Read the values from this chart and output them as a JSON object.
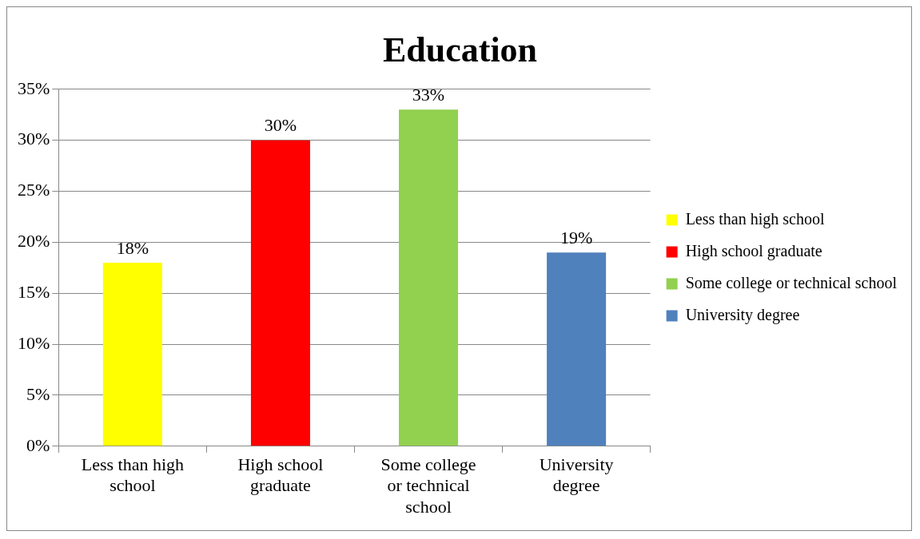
{
  "chart_data": {
    "type": "bar",
    "title": "Education",
    "categories": [
      "Less than high school",
      "High school graduate",
      "Some college or technical school",
      "University degree"
    ],
    "series": [
      {
        "name": "Less than high school",
        "color": "#ffff00",
        "values": [
          18,
          null,
          null,
          null
        ],
        "value_labels": [
          "18%",
          null,
          null,
          null
        ]
      },
      {
        "name": "High school graduate",
        "color": "#ff0000",
        "values": [
          null,
          30,
          null,
          null
        ],
        "value_labels": [
          null,
          "30%",
          null,
          null
        ]
      },
      {
        "name": "Some college or technical school",
        "color": "#92d050",
        "values": [
          null,
          null,
          33,
          null
        ],
        "value_labels": [
          null,
          null,
          "33%",
          null
        ]
      },
      {
        "name": "University degree",
        "color": "#4f81bd",
        "values": [
          null,
          null,
          null,
          19
        ],
        "value_labels": [
          null,
          null,
          null,
          "19%"
        ]
      }
    ],
    "ylim": [
      0,
      35
    ],
    "yticks": [
      {
        "value": 0,
        "label": "0%"
      },
      {
        "value": 5,
        "label": "5%"
      },
      {
        "value": 10,
        "label": "10%"
      },
      {
        "value": 15,
        "label": "15%"
      },
      {
        "value": 20,
        "label": "20%"
      },
      {
        "value": 25,
        "label": "25%"
      },
      {
        "value": 30,
        "label": "30%"
      },
      {
        "value": 35,
        "label": "35%"
      }
    ],
    "grid": "y",
    "legend": "right"
  }
}
